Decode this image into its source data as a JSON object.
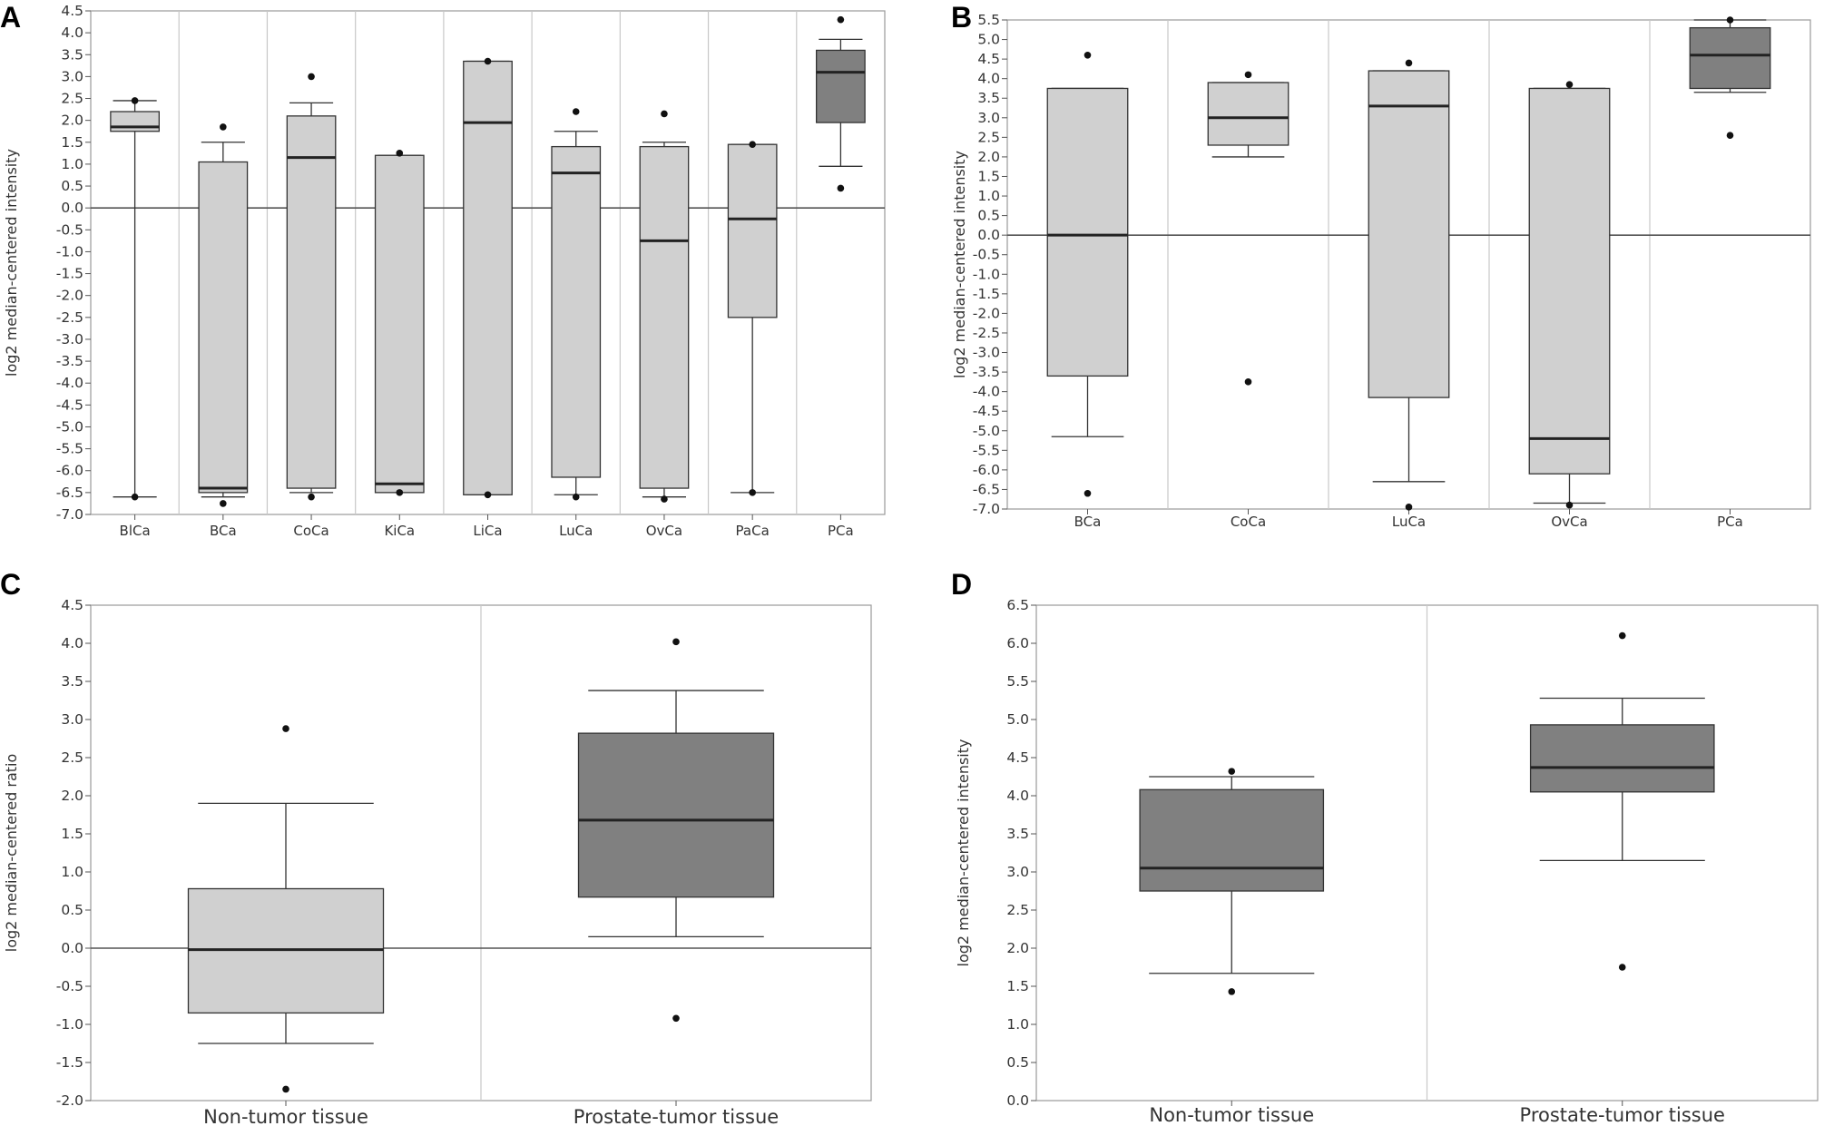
{
  "figure": {
    "panel_labels": [
      "A",
      "B",
      "C",
      "D"
    ]
  },
  "colors": {
    "box_light": "#d0d0d0",
    "box_dark": "#808080",
    "stroke": "#333333",
    "grid": "#c8c8c8",
    "frame": "#9a9a9a"
  },
  "chart_data": [
    {
      "panel": "A",
      "type": "boxplot",
      "ylabel": "log2 median-centered intensity",
      "ylim": [
        -7.0,
        4.5
      ],
      "ytick_step": 0.5,
      "yticks": [
        "4.5",
        "4.0",
        "3.5",
        "3.0",
        "2.5",
        "2.0",
        "1.5",
        "1.0",
        "0.5",
        "0.0",
        "-0.5",
        "-1.0",
        "-1.5",
        "-2.0",
        "-2.5",
        "-3.0",
        "-3.5",
        "-4.0",
        "-4.5",
        "-5.0",
        "-5.5",
        "-6.0",
        "-6.5",
        "-7.0"
      ],
      "zero_line": true,
      "categories": [
        "BlCa",
        "BCa",
        "CoCa",
        "KiCa",
        "LiCa",
        "LuCa",
        "OvCa",
        "PaCa",
        "PCa"
      ],
      "boxes": [
        {
          "q1": 1.75,
          "median": 1.85,
          "q3": 2.2,
          "whisker_low": -6.6,
          "whisker_high": 2.45,
          "outliers": [
            2.45,
            -6.6
          ],
          "fill": "light"
        },
        {
          "q1": -6.5,
          "median": -6.4,
          "q3": 1.05,
          "whisker_low": -6.6,
          "whisker_high": 1.5,
          "outliers": [
            1.85,
            -6.75
          ],
          "fill": "light"
        },
        {
          "q1": -6.4,
          "median": 1.15,
          "q3": 2.1,
          "whisker_low": -6.5,
          "whisker_high": 2.4,
          "outliers": [
            3.0,
            -6.6
          ],
          "fill": "light"
        },
        {
          "q1": -6.5,
          "median": -6.3,
          "q3": 1.2,
          "whisker_low": -6.5,
          "whisker_high": 1.2,
          "outliers": [
            1.25,
            -6.5
          ],
          "fill": "light"
        },
        {
          "q1": -6.55,
          "median": 1.95,
          "q3": 3.35,
          "whisker_low": -6.55,
          "whisker_high": 3.35,
          "outliers": [
            3.35,
            -6.55
          ],
          "fill": "light"
        },
        {
          "q1": -6.15,
          "median": 0.8,
          "q3": 1.4,
          "whisker_low": -6.55,
          "whisker_high": 1.75,
          "outliers": [
            2.2,
            -6.6
          ],
          "fill": "light"
        },
        {
          "q1": -6.4,
          "median": -0.75,
          "q3": 1.4,
          "whisker_low": -6.6,
          "whisker_high": 1.5,
          "outliers": [
            2.15,
            -6.65
          ],
          "fill": "light"
        },
        {
          "q1": -2.5,
          "median": -0.25,
          "q3": 1.45,
          "whisker_low": -6.5,
          "whisker_high": 1.45,
          "outliers": [
            1.45,
            -6.5
          ],
          "fill": "light"
        },
        {
          "q1": 1.95,
          "median": 3.1,
          "q3": 3.6,
          "whisker_low": 0.95,
          "whisker_high": 3.85,
          "outliers": [
            4.3,
            0.45
          ],
          "fill": "dark"
        }
      ]
    },
    {
      "panel": "B",
      "type": "boxplot",
      "ylabel": "log2 median-centered intensity",
      "ylim": [
        -7.0,
        5.5
      ],
      "ytick_step": 0.5,
      "yticks": [
        "5.5",
        "5.0",
        "4.5",
        "4.0",
        "3.5",
        "3.0",
        "2.5",
        "2.0",
        "1.5",
        "1.0",
        "0.5",
        "0.0",
        "-0.5",
        "-1.0",
        "-1.5",
        "-2.0",
        "-2.5",
        "-3.0",
        "-3.5",
        "-4.0",
        "-4.5",
        "-5.0",
        "-5.5",
        "-6.0",
        "-6.5",
        "-7.0"
      ],
      "zero_line": true,
      "categories": [
        "BCa",
        "CoCa",
        "LuCa",
        "OvCa",
        "PCa"
      ],
      "boxes": [
        {
          "q1": -3.6,
          "median": 0.0,
          "q3": 3.75,
          "whisker_low": -5.15,
          "whisker_high": 3.75,
          "outliers": [
            4.6,
            -6.6
          ],
          "fill": "light"
        },
        {
          "q1": 2.3,
          "median": 3.0,
          "q3": 3.9,
          "whisker_low": 2.0,
          "whisker_high": 3.9,
          "outliers": [
            4.1,
            -3.75
          ],
          "fill": "light"
        },
        {
          "q1": -4.15,
          "median": 3.3,
          "q3": 4.2,
          "whisker_low": -6.3,
          "whisker_high": 4.2,
          "outliers": [
            4.4,
            -6.95
          ],
          "fill": "light"
        },
        {
          "q1": -6.1,
          "median": -5.2,
          "q3": 3.75,
          "whisker_low": -6.85,
          "whisker_high": 3.75,
          "outliers": [
            3.85,
            -6.9
          ],
          "fill": "light"
        },
        {
          "q1": 3.75,
          "median": 4.6,
          "q3": 5.3,
          "whisker_low": 3.65,
          "whisker_high": 5.5,
          "outliers": [
            5.5,
            2.55
          ],
          "fill": "dark"
        }
      ]
    },
    {
      "panel": "C",
      "type": "boxplot",
      "ylabel": "log2 median-centered ratio",
      "ylim": [
        -2.0,
        4.5
      ],
      "ytick_step": 0.5,
      "yticks": [
        "4.5",
        "4.0",
        "3.5",
        "3.0",
        "2.5",
        "2.0",
        "1.5",
        "1.0",
        "0.5",
        "0.0",
        "-0.5",
        "-1.0",
        "-1.5",
        "-2.0"
      ],
      "zero_line": true,
      "categories": [
        "Non-tumor tissue",
        "Prostate-tumor tissue"
      ],
      "boxes": [
        {
          "q1": -0.85,
          "median": -0.02,
          "q3": 0.78,
          "whisker_low": -1.25,
          "whisker_high": 1.9,
          "outliers": [
            2.88,
            -1.85
          ],
          "fill": "light"
        },
        {
          "q1": 0.67,
          "median": 1.68,
          "q3": 2.82,
          "whisker_low": 0.15,
          "whisker_high": 3.38,
          "outliers": [
            4.02,
            -0.92
          ],
          "fill": "dark"
        }
      ]
    },
    {
      "panel": "D",
      "type": "boxplot",
      "ylabel": "log2 median-centered intensity",
      "ylim": [
        0.0,
        6.5
      ],
      "ytick_step": 0.5,
      "yticks": [
        "6.5",
        "6.0",
        "5.5",
        "5.0",
        "4.5",
        "4.0",
        "3.5",
        "3.0",
        "2.5",
        "2.0",
        "1.5",
        "1.0",
        "0.5",
        "0.0"
      ],
      "zero_line": false,
      "categories": [
        "Non-tumor tissue",
        "Prostate-tumor tissue"
      ],
      "boxes": [
        {
          "q1": 2.75,
          "median": 3.05,
          "q3": 4.08,
          "whisker_low": 1.67,
          "whisker_high": 4.25,
          "outliers": [
            4.32,
            1.43
          ],
          "fill": "dark"
        },
        {
          "q1": 4.05,
          "median": 4.37,
          "q3": 4.93,
          "whisker_low": 3.15,
          "whisker_high": 5.28,
          "outliers": [
            6.1,
            1.75
          ],
          "fill": "dark"
        }
      ]
    }
  ]
}
